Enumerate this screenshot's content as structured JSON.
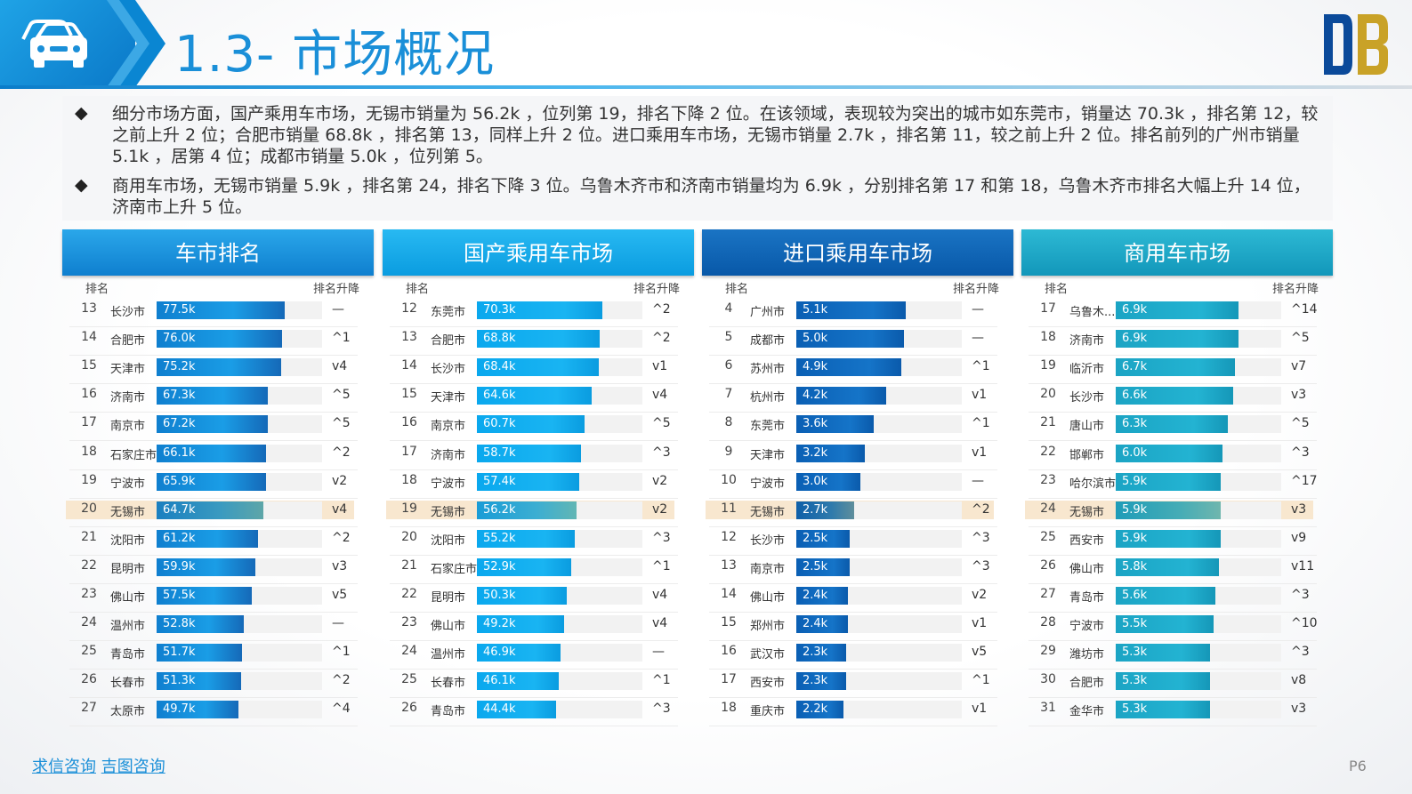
{
  "header": {
    "title": "1.3- 市场概况"
  },
  "intro": {
    "paragraphs": [
      "细分市场方面，国产乘用车市场，无锡市销量为 56.2k ，位列第 19，排名下降 2 位。在该领域，表现较为突出的城市如东莞市，销量达 70.3k ，排名第 12，较之前上升 2 位；合肥市销量 68.8k ，排名第 13，同样上升 2 位。进口乘用车市场，无锡市销量 2.7k ，排名第 11，较之前上升 2 位。排名前列的广州市销量 5.1k ，居第 4 位；成都市销量 5.0k ，位列第 5。",
      "商用车市场，无锡市销量 5.9k ，排名第 24，排名下降 3 位。乌鲁木齐市和济南市销量均为 6.9k ，分别排名第 17 和第 18，乌鲁木齐市排名大幅上升 14 位，济南市上升 5 位。"
    ]
  },
  "colors": {
    "panel1": "#1b8fd6",
    "panel2": "#12a7ea",
    "panel3": "#0a64b8",
    "panel4": "#1ba8c8",
    "highlight": "#f8e7cf"
  },
  "column_labels": {
    "rank": "排名",
    "change": "排名升降"
  },
  "chart_data": [
    {
      "type": "bar",
      "title": "车市排名",
      "rows": [
        {
          "rank": "13",
          "city": "长沙市",
          "value": 77.5,
          "label": "77.5k",
          "change": "—"
        },
        {
          "rank": "14",
          "city": "合肥市",
          "value": 76.0,
          "label": "76.0k",
          "change": "^1"
        },
        {
          "rank": "15",
          "city": "天津市",
          "value": 75.2,
          "label": "75.2k",
          "change": "v4"
        },
        {
          "rank": "16",
          "city": "济南市",
          "value": 67.3,
          "label": "67.3k",
          "change": "^5"
        },
        {
          "rank": "17",
          "city": "南京市",
          "value": 67.2,
          "label": "67.2k",
          "change": "^5"
        },
        {
          "rank": "18",
          "city": "石家庄市",
          "value": 66.1,
          "label": "66.1k",
          "change": "^2"
        },
        {
          "rank": "19",
          "city": "宁波市",
          "value": 65.9,
          "label": "65.9k",
          "change": "v2"
        },
        {
          "rank": "20",
          "city": "无锡市",
          "value": 64.7,
          "label": "64.7k",
          "change": "v4",
          "highlight": true
        },
        {
          "rank": "21",
          "city": "沈阳市",
          "value": 61.2,
          "label": "61.2k",
          "change": "^2"
        },
        {
          "rank": "22",
          "city": "昆明市",
          "value": 59.9,
          "label": "59.9k",
          "change": "v3"
        },
        {
          "rank": "23",
          "city": "佛山市",
          "value": 57.5,
          "label": "57.5k",
          "change": "v5"
        },
        {
          "rank": "24",
          "city": "温州市",
          "value": 52.8,
          "label": "52.8k",
          "change": "—"
        },
        {
          "rank": "25",
          "city": "青岛市",
          "value": 51.7,
          "label": "51.7k",
          "change": "^1"
        },
        {
          "rank": "26",
          "city": "长春市",
          "value": 51.3,
          "label": "51.3k",
          "change": "^2"
        },
        {
          "rank": "27",
          "city": "太原市",
          "value": 49.7,
          "label": "49.7k",
          "change": "^4"
        }
      ],
      "max": 100
    },
    {
      "type": "bar",
      "title": "国产乘用车市场",
      "rows": [
        {
          "rank": "12",
          "city": "东莞市",
          "value": 70.3,
          "label": "70.3k",
          "change": "^2"
        },
        {
          "rank": "13",
          "city": "合肥市",
          "value": 68.8,
          "label": "68.8k",
          "change": "^2"
        },
        {
          "rank": "14",
          "city": "长沙市",
          "value": 68.4,
          "label": "68.4k",
          "change": "v1"
        },
        {
          "rank": "15",
          "city": "天津市",
          "value": 64.6,
          "label": "64.6k",
          "change": "v4"
        },
        {
          "rank": "16",
          "city": "南京市",
          "value": 60.7,
          "label": "60.7k",
          "change": "^5"
        },
        {
          "rank": "17",
          "city": "济南市",
          "value": 58.7,
          "label": "58.7k",
          "change": "^3"
        },
        {
          "rank": "18",
          "city": "宁波市",
          "value": 57.4,
          "label": "57.4k",
          "change": "v2"
        },
        {
          "rank": "19",
          "city": "无锡市",
          "value": 56.2,
          "label": "56.2k",
          "change": "v2",
          "highlight": true
        },
        {
          "rank": "20",
          "city": "沈阳市",
          "value": 55.2,
          "label": "55.2k",
          "change": "^3"
        },
        {
          "rank": "21",
          "city": "石家庄市",
          "value": 52.9,
          "label": "52.9k",
          "change": "^1"
        },
        {
          "rank": "22",
          "city": "昆明市",
          "value": 50.3,
          "label": "50.3k",
          "change": "v4"
        },
        {
          "rank": "23",
          "city": "佛山市",
          "value": 49.2,
          "label": "49.2k",
          "change": "v4"
        },
        {
          "rank": "24",
          "city": "温州市",
          "value": 46.9,
          "label": "46.9k",
          "change": "—"
        },
        {
          "rank": "25",
          "city": "长春市",
          "value": 46.1,
          "label": "46.1k",
          "change": "^1"
        },
        {
          "rank": "26",
          "city": "青岛市",
          "value": 44.4,
          "label": "44.4k",
          "change": "^3"
        }
      ],
      "max": 93
    },
    {
      "type": "bar",
      "title": "进口乘用车市场",
      "rows": [
        {
          "rank": "4",
          "city": "广州市",
          "value": 5.1,
          "label": "5.1k",
          "change": "—"
        },
        {
          "rank": "5",
          "city": "成都市",
          "value": 5.0,
          "label": "5.0k",
          "change": "—"
        },
        {
          "rank": "6",
          "city": "苏州市",
          "value": 4.9,
          "label": "4.9k",
          "change": "^1"
        },
        {
          "rank": "7",
          "city": "杭州市",
          "value": 4.2,
          "label": "4.2k",
          "change": "v1"
        },
        {
          "rank": "8",
          "city": "东莞市",
          "value": 3.6,
          "label": "3.6k",
          "change": "^1"
        },
        {
          "rank": "9",
          "city": "天津市",
          "value": 3.2,
          "label": "3.2k",
          "change": "v1"
        },
        {
          "rank": "10",
          "city": "宁波市",
          "value": 3.0,
          "label": "3.0k",
          "change": "—"
        },
        {
          "rank": "11",
          "city": "无锡市",
          "value": 2.7,
          "label": "2.7k",
          "change": "^2",
          "highlight": true
        },
        {
          "rank": "12",
          "city": "长沙市",
          "value": 2.5,
          "label": "2.5k",
          "change": "^3"
        },
        {
          "rank": "13",
          "city": "南京市",
          "value": 2.5,
          "label": "2.5k",
          "change": "^3"
        },
        {
          "rank": "14",
          "city": "佛山市",
          "value": 2.4,
          "label": "2.4k",
          "change": "v2"
        },
        {
          "rank": "15",
          "city": "郑州市",
          "value": 2.4,
          "label": "2.4k",
          "change": "v1"
        },
        {
          "rank": "16",
          "city": "武汉市",
          "value": 2.3,
          "label": "2.3k",
          "change": "v5"
        },
        {
          "rank": "17",
          "city": "西安市",
          "value": 2.3,
          "label": "2.3k",
          "change": "^1"
        },
        {
          "rank": "18",
          "city": "重庆市",
          "value": 2.2,
          "label": "2.2k",
          "change": "v1"
        }
      ],
      "max": 7.7
    },
    {
      "type": "bar",
      "title": "商用车市场",
      "rows": [
        {
          "rank": "17",
          "city": "乌鲁木...",
          "value": 6.9,
          "label": "6.9k",
          "change": "^14"
        },
        {
          "rank": "18",
          "city": "济南市",
          "value": 6.9,
          "label": "6.9k",
          "change": "^5"
        },
        {
          "rank": "19",
          "city": "临沂市",
          "value": 6.7,
          "label": "6.7k",
          "change": "v7"
        },
        {
          "rank": "20",
          "city": "长沙市",
          "value": 6.6,
          "label": "6.6k",
          "change": "v3"
        },
        {
          "rank": "21",
          "city": "唐山市",
          "value": 6.3,
          "label": "6.3k",
          "change": "^5"
        },
        {
          "rank": "22",
          "city": "邯郸市",
          "value": 6.0,
          "label": "6.0k",
          "change": "^3"
        },
        {
          "rank": "23",
          "city": "哈尔滨市",
          "value": 5.9,
          "label": "5.9k",
          "change": "^17"
        },
        {
          "rank": "24",
          "city": "无锡市",
          "value": 5.9,
          "label": "5.9k",
          "change": "v3",
          "highlight": true
        },
        {
          "rank": "25",
          "city": "西安市",
          "value": 5.9,
          "label": "5.9k",
          "change": "v9"
        },
        {
          "rank": "26",
          "city": "佛山市",
          "value": 5.8,
          "label": "5.8k",
          "change": "v11"
        },
        {
          "rank": "27",
          "city": "青岛市",
          "value": 5.6,
          "label": "5.6k",
          "change": "^3"
        },
        {
          "rank": "28",
          "city": "宁波市",
          "value": 5.5,
          "label": "5.5k",
          "change": "^10"
        },
        {
          "rank": "29",
          "city": "潍坊市",
          "value": 5.3,
          "label": "5.3k",
          "change": "^3"
        },
        {
          "rank": "30",
          "city": "合肥市",
          "value": 5.3,
          "label": "5.3k",
          "change": "v8"
        },
        {
          "rank": "31",
          "city": "金华市",
          "value": 5.3,
          "label": "5.3k",
          "change": "v3"
        }
      ],
      "max": 9.3
    }
  ],
  "footer": {
    "brand1": "求信咨询",
    "brand2": "吉图咨询",
    "page": "P6"
  }
}
